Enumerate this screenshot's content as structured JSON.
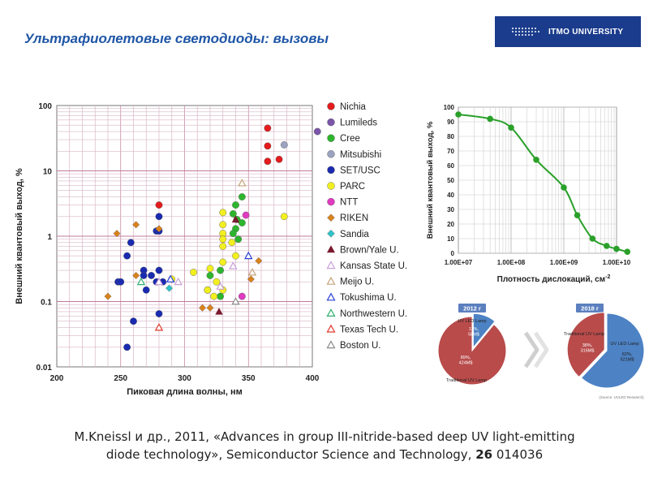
{
  "slide": {
    "title": "Ультрафиолетовые светодиоды: вызовы",
    "logo_text": "ITMO UNIVERSITY",
    "citation_line1": "M.Kneissl и др., 2011, «Advances in group III-nitride-based deep UV light-emitting",
    "citation_line2_pre": "diode technology», Semiconductor Science and Technology, ",
    "citation_volume": "26",
    "citation_line2_post": " 014036"
  },
  "chart_data": [
    {
      "type": "scatter",
      "xlabel": "Пиковая длина волны, нм",
      "ylabel": "Внешний квантовый выход, %",
      "xlim": [
        200,
        400
      ],
      "ylim": [
        0.01,
        100
      ],
      "yscale": "log",
      "x_ticks": [
        "200",
        "250",
        "300",
        "350",
        "400"
      ],
      "x_tick_values": [
        200,
        250,
        300,
        350,
        400
      ],
      "y_ticks": [
        "0.01",
        "0.1",
        "1",
        "10",
        "100"
      ],
      "y_tick_values": [
        0.01,
        0.1,
        1,
        10,
        100
      ],
      "grid": true,
      "legend": "right",
      "series": [
        {
          "name": "Nichia",
          "marker": "circle",
          "color": "#e41a1c",
          "points": [
            [
              365,
              45
            ],
            [
              365,
              24
            ],
            [
              374,
              15
            ],
            [
              365,
              14
            ],
            [
              280,
              3
            ]
          ]
        },
        {
          "name": "Lumileds",
          "marker": "circle",
          "color": "#7b55a8",
          "points": [
            [
              404,
              40
            ]
          ]
        },
        {
          "name": "Cree",
          "marker": "circle",
          "color": "#2db52d",
          "points": [
            [
              345,
              4
            ],
            [
              340,
              3
            ],
            [
              338,
              2.2
            ],
            [
              341,
              1.8
            ],
            [
              345,
              1.6
            ],
            [
              340,
              1.3
            ],
            [
              338,
              1.1
            ],
            [
              342,
              0.9
            ],
            [
              328,
              0.3
            ],
            [
              320,
              0.25
            ],
            [
              318,
              0.15
            ],
            [
              328,
              0.12
            ]
          ]
        },
        {
          "name": "Mitsubishi",
          "marker": "circle",
          "color": "#9ba3c0",
          "points": [
            [
              378,
              25
            ]
          ]
        },
        {
          "name": "SET/USC",
          "marker": "circle",
          "color": "#1a2bb0",
          "points": [
            [
              280,
              2
            ],
            [
              278,
              1.2
            ],
            [
              280,
              1.2
            ],
            [
              258,
              0.8
            ],
            [
              255,
              0.5
            ],
            [
              268,
              0.3
            ],
            [
              280,
              0.3
            ],
            [
              268,
              0.25
            ],
            [
              274,
              0.25
            ],
            [
              278,
              0.2
            ],
            [
              283,
              0.2
            ],
            [
              248,
              0.2
            ],
            [
              250,
              0.2
            ],
            [
              270,
              0.15
            ],
            [
              260,
              0.05
            ],
            [
              280,
              0.065
            ],
            [
              255,
              0.02
            ]
          ]
        },
        {
          "name": "PARC",
          "marker": "circle",
          "color": "#f2ef20",
          "points": [
            [
              330,
              2.3
            ],
            [
              330,
              1.5
            ],
            [
              330,
              1.1
            ],
            [
              330,
              0.9
            ],
            [
              337,
              0.8
            ],
            [
              330,
              0.7
            ],
            [
              340,
              0.5
            ],
            [
              330,
              0.4
            ],
            [
              320,
              0.32
            ],
            [
              307,
              0.28
            ],
            [
              325,
              0.2
            ],
            [
              330,
              0.15
            ],
            [
              318,
              0.15
            ],
            [
              323,
              0.12
            ],
            [
              290,
              0.22
            ],
            [
              378,
              2
            ]
          ]
        },
        {
          "name": "NTT",
          "marker": "circle",
          "color": "#e03ac1",
          "points": [
            [
              348,
              2.1
            ],
            [
              345,
              0.12
            ]
          ]
        },
        {
          "name": "RIKEN",
          "marker": "diamond",
          "color": "#d9821c",
          "points": [
            [
              262,
              1.5
            ],
            [
              280,
              1.3
            ],
            [
              247,
              1.1
            ],
            [
              262,
              0.25
            ],
            [
              240,
              0.12
            ],
            [
              314,
              0.08
            ],
            [
              320,
              0.08
            ],
            [
              352,
              0.22
            ],
            [
              358,
              0.42
            ]
          ]
        },
        {
          "name": "Sandia",
          "marker": "diamond",
          "color": "#2ec3c9",
          "points": [
            [
              288,
              0.16
            ]
          ]
        },
        {
          "name": "Brown/Yale U.",
          "marker": "triangle",
          "color": "#7a1a2e",
          "points": [
            [
              338,
              0.35
            ],
            [
              340,
              1.8
            ],
            [
              327,
              0.07
            ]
          ]
        },
        {
          "name": "Kansas State U.",
          "marker": "triangle",
          "color": "#c8a0d8",
          "points": [
            [
              280,
              0.2
            ],
            [
              295,
              0.2
            ],
            [
              338,
              0.35
            ],
            [
              328,
              0.17
            ]
          ]
        },
        {
          "name": "Meijo U.",
          "marker": "triangle",
          "color": "#c5a37a",
          "points": [
            [
              345,
              6.5
            ],
            [
              353,
              0.28
            ]
          ]
        },
        {
          "name": "Tokushima U.",
          "marker": "triangle",
          "color": "#2a40d6",
          "points": [
            [
              350,
              0.5
            ],
            [
              289,
              0.22
            ]
          ]
        },
        {
          "name": "Northwestern U.",
          "marker": "triangle",
          "color": "#30b070",
          "points": [
            [
              266,
              0.2
            ]
          ]
        },
        {
          "name": "Texas Tech U.",
          "marker": "triangle",
          "color": "#e0392b",
          "points": [
            [
              280,
              0.04
            ]
          ]
        },
        {
          "name": "Boston U.",
          "marker": "triangle",
          "color": "#8a8a8a",
          "points": [
            [
              340,
              0.1
            ]
          ]
        }
      ]
    },
    {
      "type": "line",
      "xlabel": "Плотность дислокаций, см",
      "xlabel_sup": "-2",
      "ylabel": "Внешний квантовый выход, %",
      "xscale": "log",
      "xlim": [
        10000000.0,
        10000000000.0
      ],
      "ylim": [
        0,
        100
      ],
      "x_ticks": [
        "1.00E+07",
        "1.00E+08",
        "1.00E+09",
        "1.00E+10"
      ],
      "x_tick_values": [
        10000000.0,
        100000000.0,
        1000000000.0,
        10000000000.0
      ],
      "y_ticks": [
        "0",
        "10",
        "20",
        "30",
        "40",
        "50",
        "60",
        "70",
        "80",
        "90",
        "100"
      ],
      "y_tick_values": [
        0,
        10,
        20,
        30,
        40,
        50,
        60,
        70,
        80,
        90,
        100
      ],
      "grid": true,
      "color": "#2aa02a",
      "x": [
        10000000.0,
        40000000.0,
        100000000.0,
        300000000.0,
        1000000000.0,
        1800000000.0,
        3500000000.0,
        6500000000.0,
        10000000000.0,
        16000000000.0
      ],
      "y": [
        95,
        92,
        86,
        64,
        45,
        26,
        10,
        5,
        3,
        1
      ]
    },
    {
      "type": "pie",
      "header": "2012 r",
      "slices": [
        {
          "label": "UV LED Lamp",
          "value_label": "11%,\n58M$",
          "value": 11,
          "color": "#4d82c4"
        },
        {
          "label": "Traditional UV Lamp",
          "value_label": "89%,\n424M$",
          "value": 89,
          "color": "#b94b4b"
        }
      ]
    },
    {
      "type": "pie",
      "header": "2018 r",
      "footnote": "(Source: UVLED Research)",
      "slices": [
        {
          "label": "UV LED Lamp",
          "value_label": "62%,\n521M$",
          "value": 62,
          "color": "#4d82c4"
        },
        {
          "label": "Traditional UV Lamp",
          "value_label": "38%,\n316M$",
          "value": 38,
          "color": "#b94b4b"
        }
      ]
    }
  ]
}
